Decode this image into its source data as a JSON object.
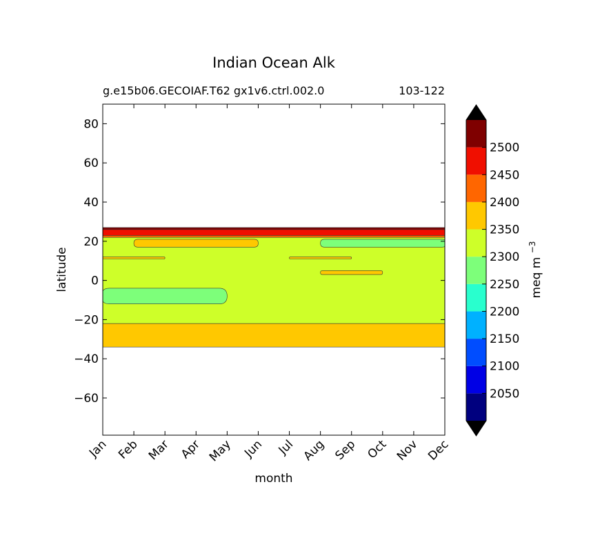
{
  "chart_data": {
    "type": "contour",
    "title": "Indian Ocean Alk",
    "subtitle_left": "g.e15b06.GECOIAF.T62 gx1v6.ctrl.002.0",
    "subtitle_right": "103-122",
    "xlabel": "month",
    "ylabel": "latitude",
    "x_categories": [
      "Jan",
      "Feb",
      "Mar",
      "Apr",
      "May",
      "Jun",
      "Jul",
      "Aug",
      "Sep",
      "Oct",
      "Nov",
      "Dec"
    ],
    "ylim": [
      -79,
      90
    ],
    "yticks": [
      80,
      60,
      40,
      20,
      0,
      -20,
      -40,
      -60
    ],
    "ytick_labels": [
      "80",
      "60",
      "40",
      "20",
      "0",
      "−20",
      "−40",
      "−60"
    ],
    "colorbar": {
      "label_base": "meq m",
      "label_exp": "−3",
      "extend": "both",
      "levels": [
        2000,
        2050,
        2100,
        2150,
        2200,
        2250,
        2300,
        2350,
        2400,
        2450,
        2500,
        2550
      ],
      "ticks": [
        2050,
        2100,
        2150,
        2200,
        2250,
        2300,
        2350,
        2400,
        2450,
        2500
      ],
      "tick_labels": [
        "2050",
        "2100",
        "2150",
        "2200",
        "2250",
        "2300",
        "2350",
        "2400",
        "2450",
        "2500"
      ],
      "colors": [
        "#00007f",
        "#0000e5",
        "#004dff",
        "#00b1ff",
        "#29ffce",
        "#7dff7a",
        "#ceff29",
        "#ffc800",
        "#ff6600",
        "#f00f00",
        "#7f0000"
      ],
      "under_color": "#000000",
      "over_color": "#000000"
    },
    "bands": [
      {
        "level": "2350-2400",
        "color": "#ffc800",
        "lat_min": -34,
        "lat_max": -22
      },
      {
        "level": "2300-2350",
        "color": "#ceff29",
        "lat_min": -22,
        "lat_max": 22
      },
      {
        "level": "2400-2450",
        "color": "#ff6600",
        "lat_min": 22,
        "lat_max": 23
      },
      {
        "level": "2450-2500",
        "color": "#f00f00",
        "lat_min": 23,
        "lat_max": 26
      },
      {
        "level": "2500-2550",
        "color": "#7f0000",
        "lat_min": 26,
        "lat_max": 27
      }
    ],
    "patches": [
      {
        "level": "2250-2300",
        "color": "#7dff7a",
        "month_range": [
          "Jan",
          "May"
        ],
        "lat_range": [
          -12,
          -4
        ]
      },
      {
        "level": "2250-2300",
        "color": "#7dff7a",
        "month_range": [
          "Aug",
          "Dec"
        ],
        "lat_range": [
          17,
          21
        ]
      },
      {
        "level": "2350-2400",
        "color": "#ffc800",
        "month_range": [
          "Jan",
          "Mar"
        ],
        "lat_range": [
          11,
          12
        ]
      },
      {
        "level": "2350-2400",
        "color": "#ffc800",
        "month_range": [
          "Jul",
          "Sep"
        ],
        "lat_range": [
          11,
          12
        ]
      },
      {
        "level": "2350-2400",
        "color": "#ffc800",
        "month_range": [
          "Aug",
          "Oct"
        ],
        "lat_range": [
          3,
          5
        ]
      },
      {
        "level": "2350-2400",
        "color": "#ffc800",
        "month_range": [
          "Feb",
          "Jun"
        ],
        "lat_range": [
          17,
          21
        ]
      }
    ]
  }
}
